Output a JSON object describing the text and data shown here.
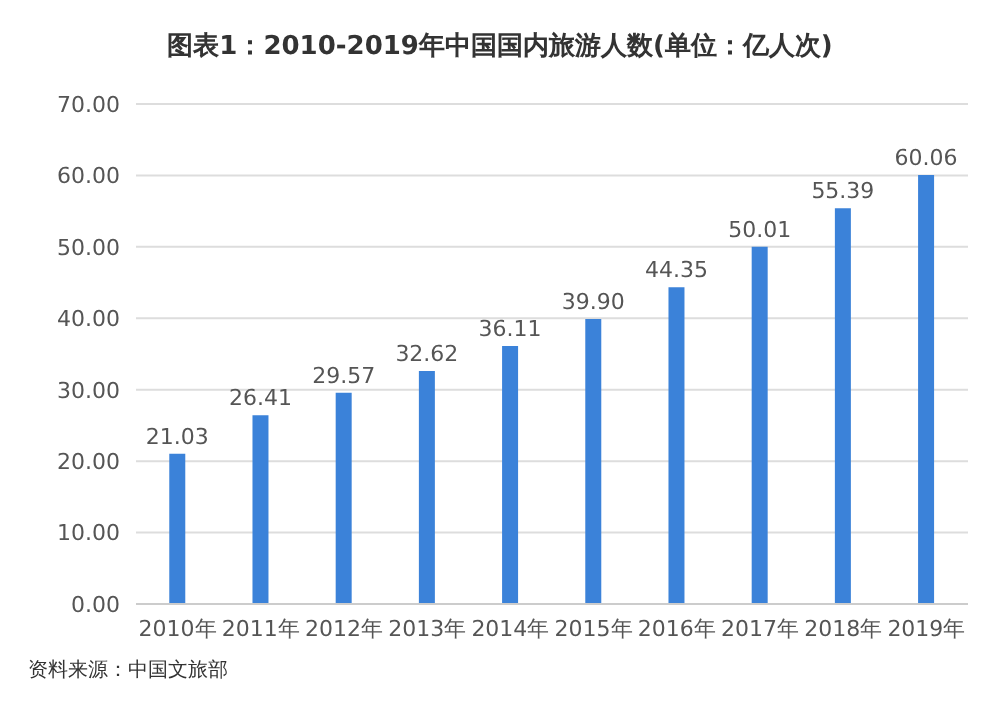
{
  "chart_data": {
    "type": "bar",
    "title": "图表1：2010-2019年中国国内旅游人数(单位：亿人次)",
    "categories": [
      "2010年",
      "2011年",
      "2012年",
      "2013年",
      "2014年",
      "2015年",
      "2016年",
      "2017年",
      "2018年",
      "2019年"
    ],
    "values": [
      21.03,
      26.41,
      29.57,
      32.62,
      36.11,
      39.9,
      44.35,
      50.01,
      55.39,
      60.06
    ],
    "value_labels": [
      "21.03",
      "26.41",
      "29.57",
      "32.62",
      "36.11",
      "39.90",
      "44.35",
      "50.01",
      "55.39",
      "60.06"
    ],
    "color": "#3b82d9",
    "ylim": [
      0,
      70
    ],
    "yticks": [
      {
        "value": 0,
        "label": "0.00"
      },
      {
        "value": 10,
        "label": "10.00"
      },
      {
        "value": 20,
        "label": "20.00"
      },
      {
        "value": 30,
        "label": "30.00"
      },
      {
        "value": 40,
        "label": "40.00"
      },
      {
        "value": 50,
        "label": "50.00"
      },
      {
        "value": 60,
        "label": "60.00"
      },
      {
        "value": 70,
        "label": "70.00"
      }
    ],
    "grid": "y",
    "annotations": [
      "资料来源：中国文旅部"
    ]
  }
}
